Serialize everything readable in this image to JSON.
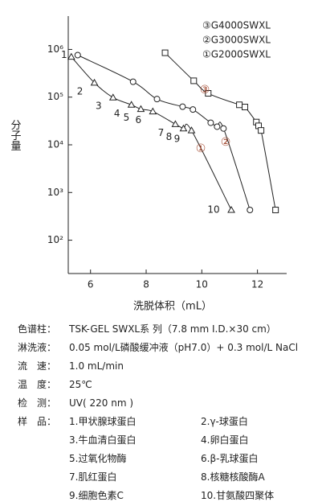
{
  "chart_data": {
    "type": "scatter-line",
    "y_label": "分子量",
    "x_label": "洗脱体积（mL）",
    "xlim": [
      5.2,
      13.05
    ],
    "xticks": [
      6,
      8,
      10,
      12
    ],
    "ylim": [
      20,
      5000000
    ],
    "log_y": true,
    "yticks": [
      {
        "value": 100,
        "label": "10²"
      },
      {
        "value": 1000,
        "label": "10³"
      },
      {
        "value": 10000,
        "label": "10⁴"
      },
      {
        "value": 100000,
        "label": "10⁵"
      },
      {
        "value": 1000000,
        "label": "10⁶"
      }
    ],
    "legend_position": "upper right",
    "series": [
      {
        "name": "③G4000SWXL",
        "tag": "③",
        "marker": "square",
        "color": "#222222",
        "tag_color": "#a0442a",
        "x": [
          8.68,
          9.71,
          10.23,
          11.35,
          11.55,
          11.96,
          12.04,
          12.13,
          12.65
        ],
        "values": [
          850000,
          220000,
          120000,
          69000,
          62000,
          30000,
          25000,
          20000,
          430
        ]
      },
      {
        "name": "②G3000SWXL",
        "tag": "②",
        "marker": "circle",
        "color": "#222222",
        "tag_color": "#a0442a",
        "x": [
          5.54,
          7.53,
          8.39,
          9.31,
          9.68,
          10.32,
          10.55,
          10.78,
          11.73
        ],
        "values": [
          760000,
          210000,
          91000,
          63000,
          55000,
          29000,
          24000,
          22000,
          430
        ]
      },
      {
        "name": "①G2000SWXL",
        "tag": "①",
        "marker": "triangle",
        "color": "#222222",
        "tag_color": "#a0442a",
        "x": [
          5.31,
          6.14,
          6.81,
          7.47,
          7.81,
          8.24,
          9.05,
          9.34,
          9.63,
          11.06
        ],
        "values": [
          700000,
          200000,
          98000,
          69000,
          56000,
          50000,
          27000,
          22000,
          20000,
          430
        ],
        "point_labels": [
          "1",
          "2",
          "3",
          "4",
          "5",
          "6",
          "7",
          "8",
          "9",
          "10"
        ]
      }
    ]
  },
  "conditions": [
    {
      "label": "色谱柱：",
      "value": "TSK-GEL SWXL系 列（7.8 mm I.D.×30 cm）"
    },
    {
      "label": "淋洗液：",
      "value": "0.05 mol/L磷酸缓冲液（pH7.0）+ 0.3 mol/L NaCl"
    },
    {
      "label": "流　速：",
      "value": "1.0 mL/min"
    },
    {
      "label": "温　度：",
      "value": "25℃"
    },
    {
      "label": "检　测：",
      "value": "UV( 220 nm )"
    }
  ],
  "samples": {
    "label": "样　品：",
    "items": [
      "1.甲状腺球蛋白",
      "2.γ-球蛋白",
      "3.牛血清白蛋白",
      "4.卵白蛋白",
      "5.过氧化物酶",
      "6.β-乳球蛋白",
      "7.肌红蛋白",
      "8.核糖核酸酶A",
      "9.细胞色素C",
      "10.甘氨酸四聚体"
    ]
  }
}
